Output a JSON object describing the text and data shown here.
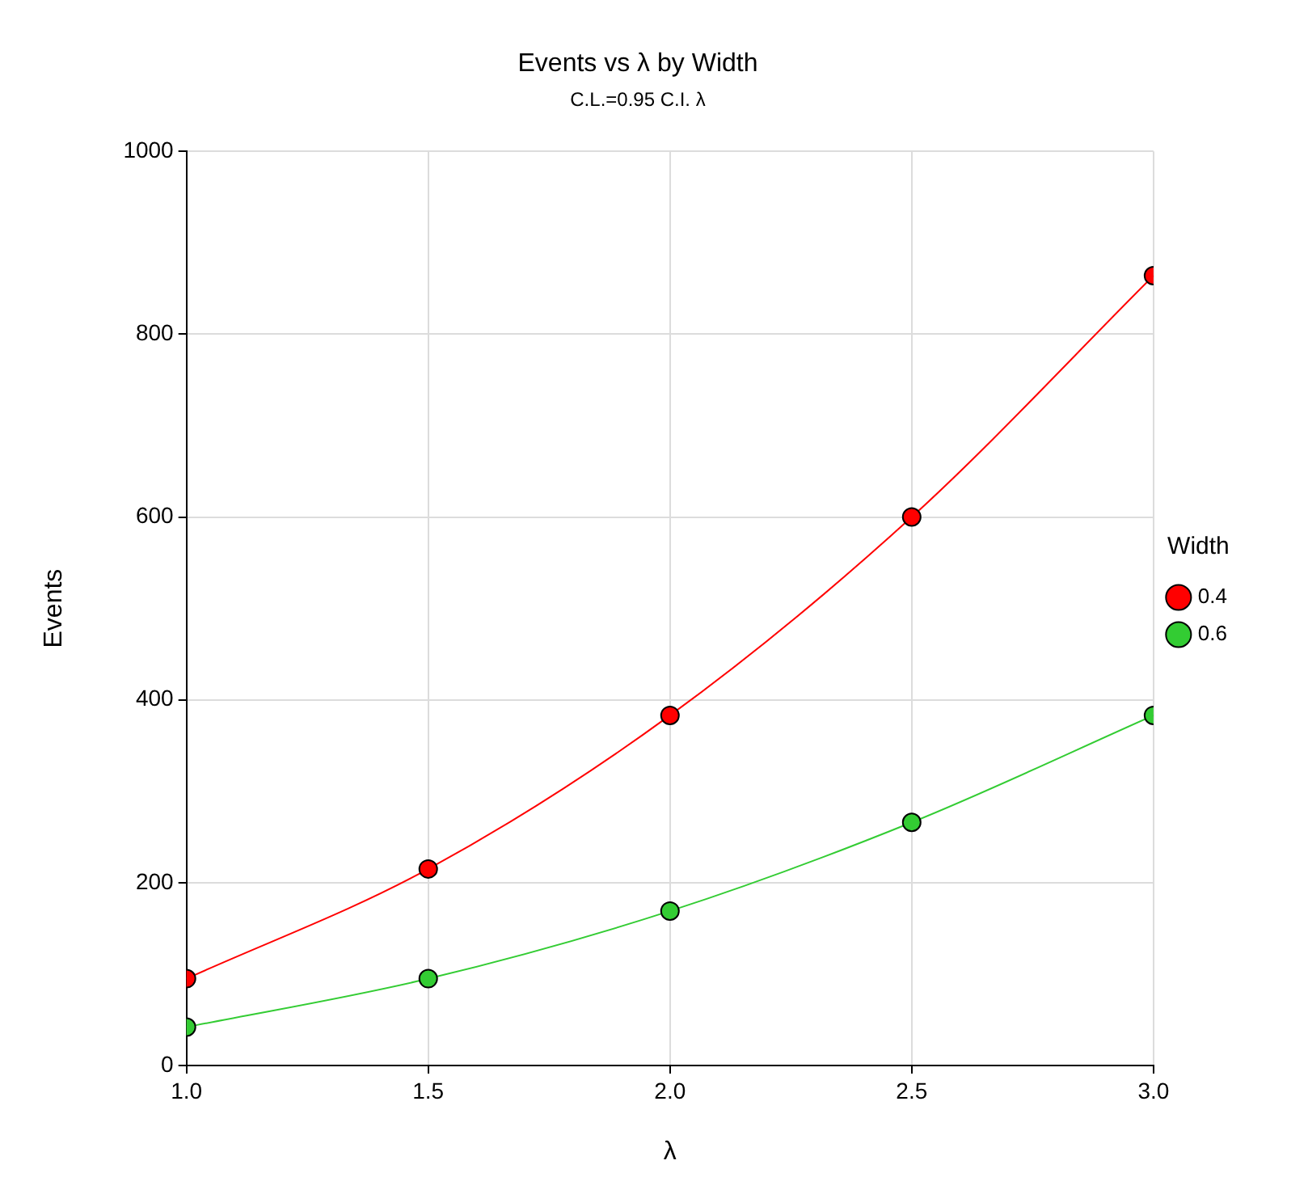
{
  "chart_data": {
    "type": "line",
    "title": "Events vs λ by Width",
    "subtitle": "C.L.=0.95 C.I. λ",
    "xlabel": "λ",
    "ylabel": "Events",
    "legend_title": "Width",
    "x": [
      1.0,
      1.5,
      2.0,
      2.5,
      3.0
    ],
    "series": [
      {
        "name": "0.4",
        "color": "#ff0000",
        "values": [
          95,
          215,
          383,
          600,
          864
        ]
      },
      {
        "name": "0.6",
        "color": "#33cc33",
        "values": [
          42,
          95,
          169,
          266,
          383
        ]
      }
    ],
    "xlim": [
      1.0,
      3.0
    ],
    "xticks": [
      {
        "value": 1.0,
        "label": "1.0"
      },
      {
        "value": 1.5,
        "label": "1.5"
      },
      {
        "value": 2.0,
        "label": "2.0"
      },
      {
        "value": 2.5,
        "label": "2.5"
      },
      {
        "value": 3.0,
        "label": "3.0"
      }
    ],
    "ylim": [
      0,
      1000
    ],
    "yticks": [
      0,
      200,
      400,
      600,
      800,
      1000
    ],
    "grid": true,
    "legend": "right",
    "marker": "circle",
    "line_style": "solid"
  }
}
